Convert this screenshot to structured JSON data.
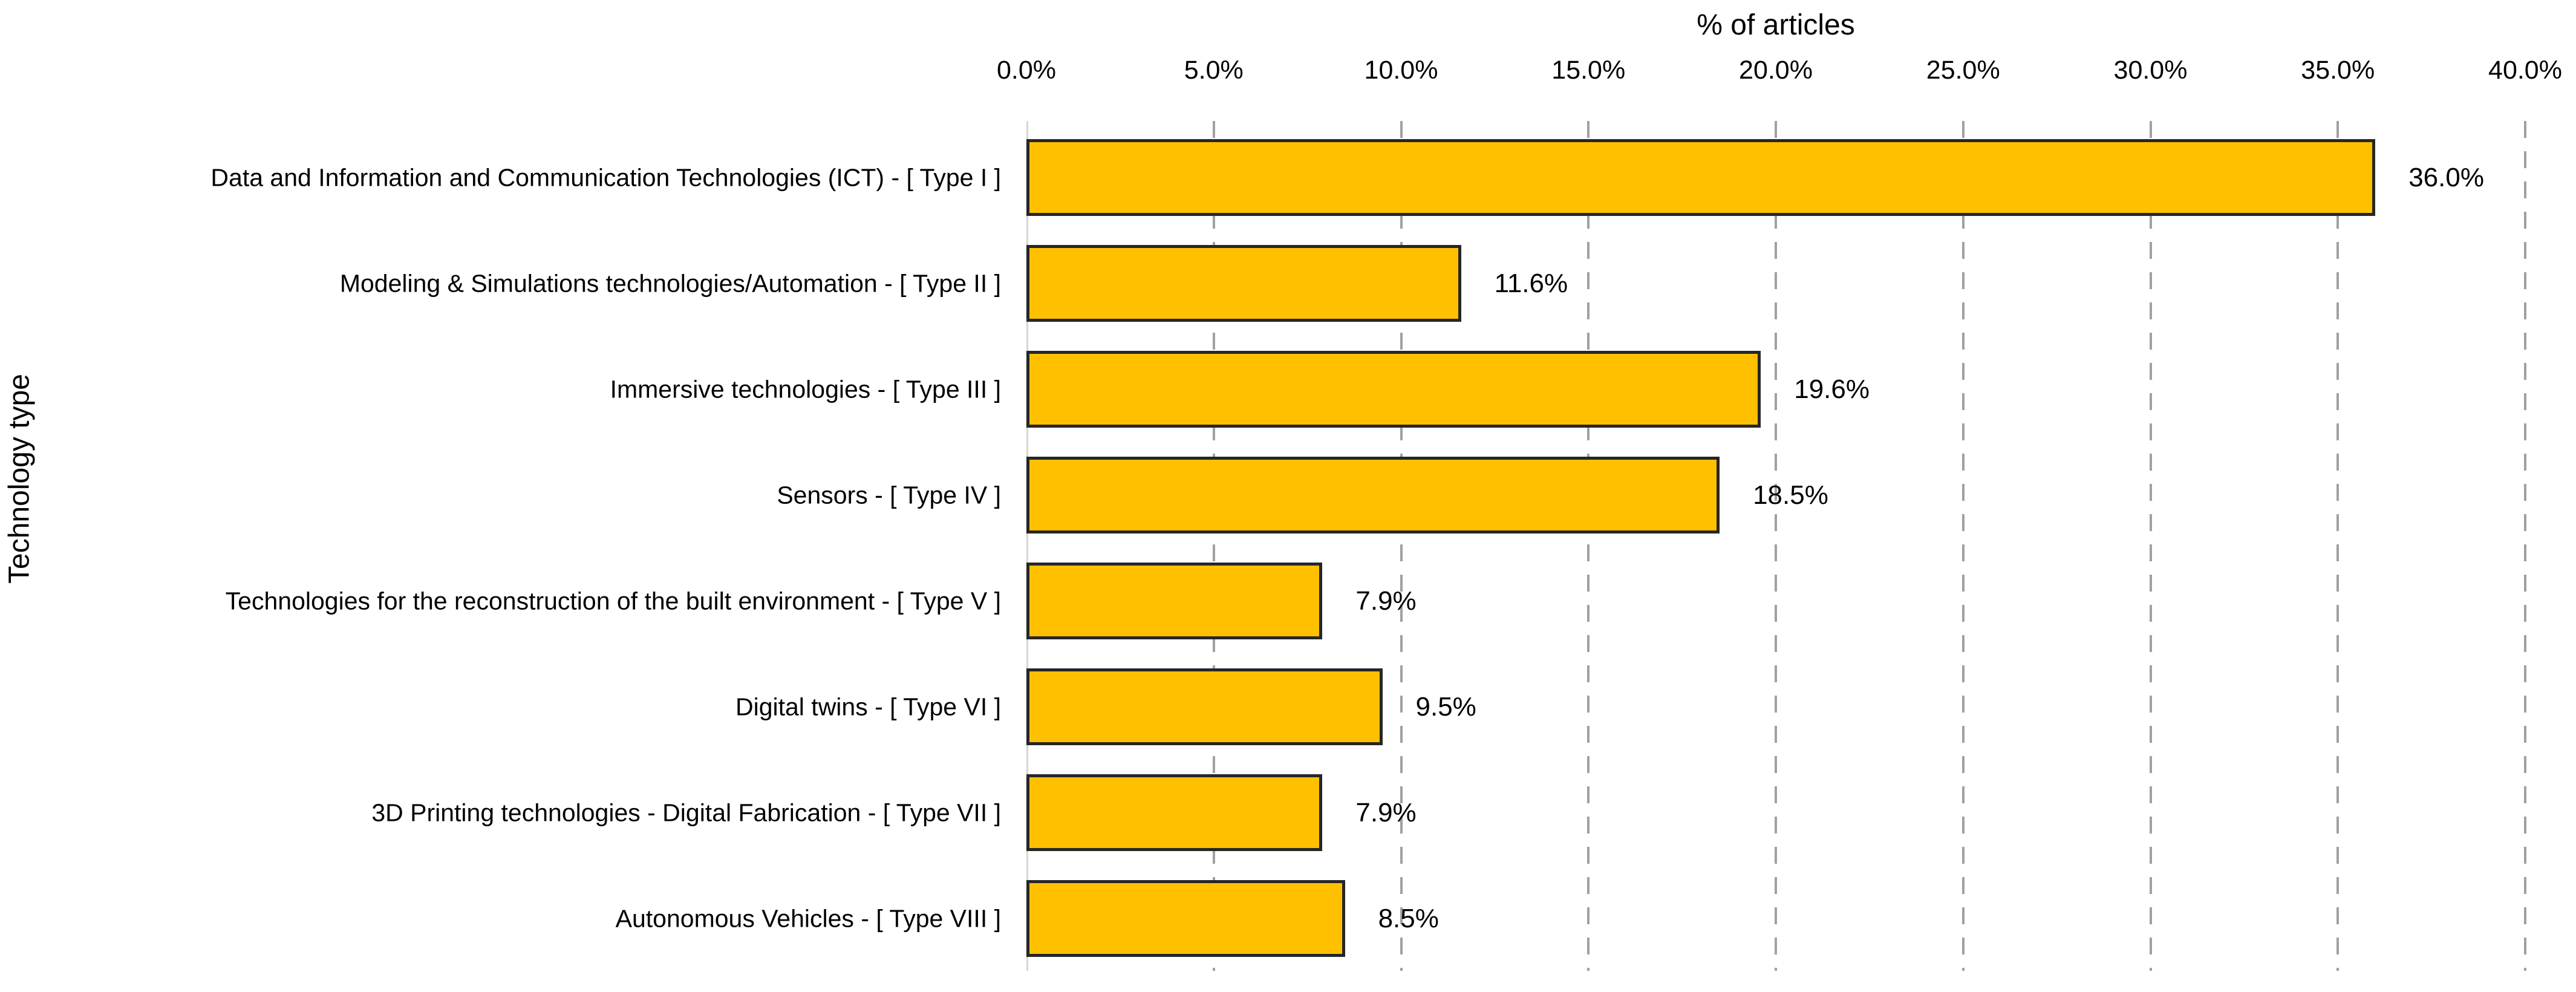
{
  "chart_data": {
    "type": "bar",
    "orientation": "horizontal",
    "title": "% of articles",
    "xlabel": "% of articles",
    "ylabel": "Technology type",
    "categories": [
      "Data and Information and Communication Technologies (ICT) - [ Type I ]",
      "Modeling & Simulations technologies/Automation - [ Type II ]",
      "Immersive technologies - [ Type III ]",
      "Sensors - [ Type IV ]",
      "Technologies for the reconstruction of the built environment - [ Type V ]",
      "Digital twins - [ Type VI ]",
      "3D Printing technologies - Digital Fabrication - [ Type VII ]",
      "Autonomous Vehicles - [ Type VIII ]"
    ],
    "values": [
      36.0,
      11.6,
      19.6,
      18.5,
      7.9,
      9.5,
      7.9,
      8.5
    ],
    "value_labels": [
      "36.0%",
      "11.6%",
      "19.6%",
      "18.5%",
      "7.9%",
      "9.5%",
      "7.9%",
      "8.5%"
    ],
    "xlim": [
      0,
      40
    ],
    "x_tick_values": [
      0,
      5,
      10,
      15,
      20,
      25,
      30,
      35,
      40
    ],
    "x_tick_labels": [
      "0.0%",
      "5.0%",
      "10.0%",
      "15.0%",
      "20.0%",
      "25.0%",
      "30.0%",
      "35.0%",
      "40.0%"
    ],
    "grid": "vertical-dashed",
    "legend": "none",
    "colors": {
      "bar_fill": "#ffc000",
      "bar_border": "#262626",
      "gridline": "#a0a0a0",
      "axis_line": "#d6d6d6",
      "text": "#000000",
      "background": "#ffffff"
    }
  }
}
